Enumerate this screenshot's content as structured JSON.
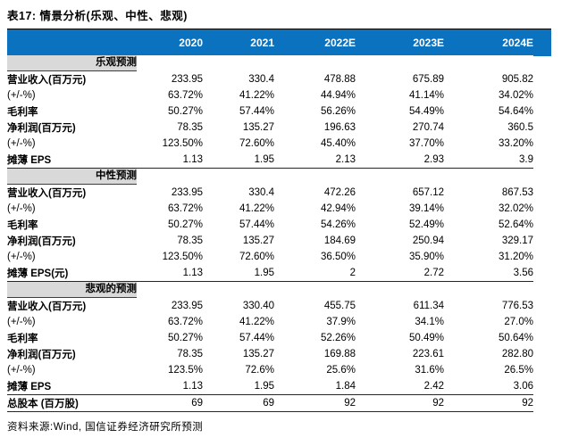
{
  "title": "表17: 情景分析(乐观、中性、悲观)",
  "source": "资料来源:Wind, 国信证券经济研究所预测",
  "colors": {
    "header_bg": "#0b72c0",
    "section_bg": "#d9d9d9",
    "rule": "#262626"
  },
  "table": {
    "columns": [
      "2020",
      "2021",
      "2022E",
      "2023E",
      "2024E"
    ],
    "sections": [
      {
        "name": "乐观预测",
        "rows": [
          {
            "label": "营业收入(百万元)",
            "bold": true,
            "values": [
              "233.95",
              "330.4",
              "478.88",
              "675.89",
              "905.82"
            ]
          },
          {
            "label": "(+/-%)",
            "bold": false,
            "values": [
              "63.72%",
              "41.22%",
              "44.94%",
              "41.14%",
              "34.02%"
            ]
          },
          {
            "label": "毛利率",
            "bold": true,
            "values": [
              "50.27%",
              "57.44%",
              "56.26%",
              "54.49%",
              "54.64%"
            ]
          },
          {
            "label": "净利润(百万元)",
            "bold": true,
            "values": [
              "78.35",
              "135.27",
              "196.63",
              "270.74",
              "360.5"
            ]
          },
          {
            "label": "(+/-%)",
            "bold": false,
            "values": [
              "123.50%",
              "72.60%",
              "45.40%",
              "37.70%",
              "33.20%"
            ]
          },
          {
            "label": "摊薄 EPS",
            "bold": true,
            "values": [
              "1.13",
              "1.95",
              "2.13",
              "2.93",
              "3.9"
            ]
          }
        ]
      },
      {
        "name": "中性预测",
        "rows": [
          {
            "label": "营业收入(百万元)",
            "bold": true,
            "values": [
              "233.95",
              "330.4",
              "472.26",
              "657.12",
              "867.53"
            ]
          },
          {
            "label": "(+/-%)",
            "bold": false,
            "values": [
              "63.72%",
              "41.22%",
              "42.94%",
              "39.14%",
              "32.02%"
            ]
          },
          {
            "label": "毛利率",
            "bold": true,
            "values": [
              "50.27%",
              "57.44%",
              "54.26%",
              "52.49%",
              "52.64%"
            ]
          },
          {
            "label": "净利润(百万元)",
            "bold": true,
            "values": [
              "78.35",
              "135.27",
              "184.69",
              "250.94",
              "329.17"
            ]
          },
          {
            "label": "(+/-%)",
            "bold": false,
            "values": [
              "123.50%",
              "72.60%",
              "36.50%",
              "35.90%",
              "31.20%"
            ]
          },
          {
            "label": "摊薄 EPS(元)",
            "bold": true,
            "values": [
              "1.13",
              "1.95",
              "2",
              "2.72",
              "3.56"
            ]
          }
        ]
      },
      {
        "name": "悲观的预测",
        "rows": [
          {
            "label": "营业收入(百万元)",
            "bold": true,
            "values": [
              "233.95",
              "330.40",
              "455.75",
              "611.34",
              "776.53"
            ]
          },
          {
            "label": "(+/-%)",
            "bold": false,
            "values": [
              "63.72%",
              "41.22%",
              "37.9%",
              "34.1%",
              "27.0%"
            ]
          },
          {
            "label": "毛利率",
            "bold": true,
            "values": [
              "50.27%",
              "57.44%",
              "52.26%",
              "50.49%",
              "50.64%"
            ]
          },
          {
            "label": "净利润(百万元)",
            "bold": true,
            "values": [
              "78.35",
              "135.27",
              "169.88",
              "223.61",
              "282.80"
            ]
          },
          {
            "label": "(+/-%)",
            "bold": false,
            "values": [
              "123.5%",
              "72.6%",
              "25.6%",
              "31.6%",
              "26.5%"
            ]
          },
          {
            "label": "摊薄 EPS",
            "bold": true,
            "values": [
              "1.13",
              "1.95",
              "1.84",
              "2.42",
              "3.06"
            ]
          }
        ]
      }
    ],
    "total_row": {
      "label": "总股本 (百万股)",
      "bold": true,
      "values": [
        "69",
        "69",
        "92",
        "92",
        "92"
      ]
    }
  }
}
